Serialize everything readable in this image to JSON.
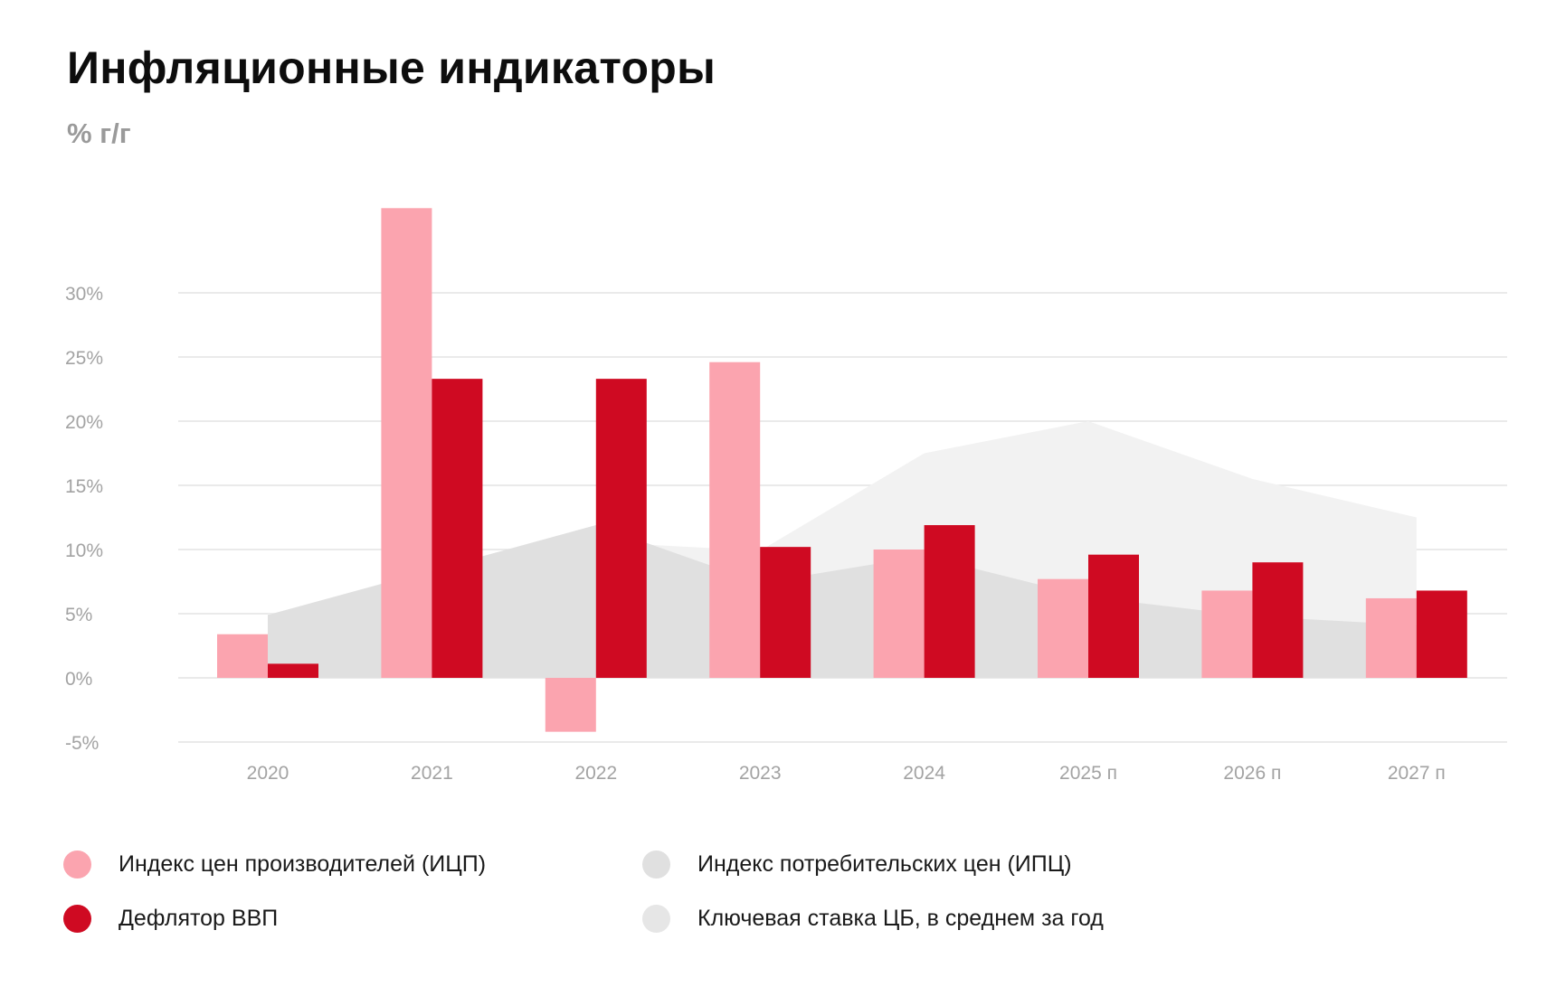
{
  "chart_data": {
    "type": "bar",
    "title": "Инфляционные индикаторы",
    "ylabel": "% г/г",
    "xlabel": "",
    "categories": [
      "2020",
      "2021",
      "2022",
      "2023",
      "2024",
      "2025 п",
      "2026 п",
      "2027 п"
    ],
    "ylim": [
      -5,
      36
    ],
    "yticks": [
      30,
      25,
      20,
      15,
      10,
      5,
      0,
      -5
    ],
    "ytick_labels": [
      "30%",
      "25%",
      "20%",
      "15%",
      "10%",
      "5%",
      "0%",
      "-5%"
    ],
    "grid": true,
    "legend_position": "bottom",
    "series": [
      {
        "name": "Ключевая ставка ЦБ, в среднем за год",
        "kind": "area",
        "color": "#f2f2f2",
        "values": [
          5.0,
          5.7,
          10.6,
          9.9,
          17.5,
          20.0,
          15.5,
          12.5
        ]
      },
      {
        "name": "Индекс потребительских цен (ИПЦ)",
        "kind": "area",
        "color": "#e0e0e0",
        "values": [
          4.9,
          8.4,
          11.9,
          7.4,
          9.5,
          6.3,
          4.8,
          4.1
        ]
      },
      {
        "name": "Индекс цен производителей (ИЦП)",
        "kind": "bar",
        "color": "#fba4af",
        "values": [
          3.4,
          36.6,
          -4.2,
          24.6,
          10.0,
          7.7,
          6.8,
          6.2
        ]
      },
      {
        "name": "Дефлятор ВВП",
        "kind": "bar",
        "color": "#cf0a22",
        "values": [
          1.1,
          23.3,
          23.3,
          10.2,
          11.9,
          9.6,
          9.0,
          6.8
        ]
      }
    ]
  },
  "legend": {
    "items": [
      {
        "label": "Индекс цен производителей (ИЦП)",
        "color": "#fba4af"
      },
      {
        "label": "Индекс потребительских цен (ИПЦ)",
        "color": "#e0e0e0"
      },
      {
        "label": "Дефлятор ВВП",
        "color": "#cf0a22"
      },
      {
        "label": "Ключевая ставка ЦБ, в среднем за год",
        "color": "#e6e6e6"
      }
    ]
  }
}
